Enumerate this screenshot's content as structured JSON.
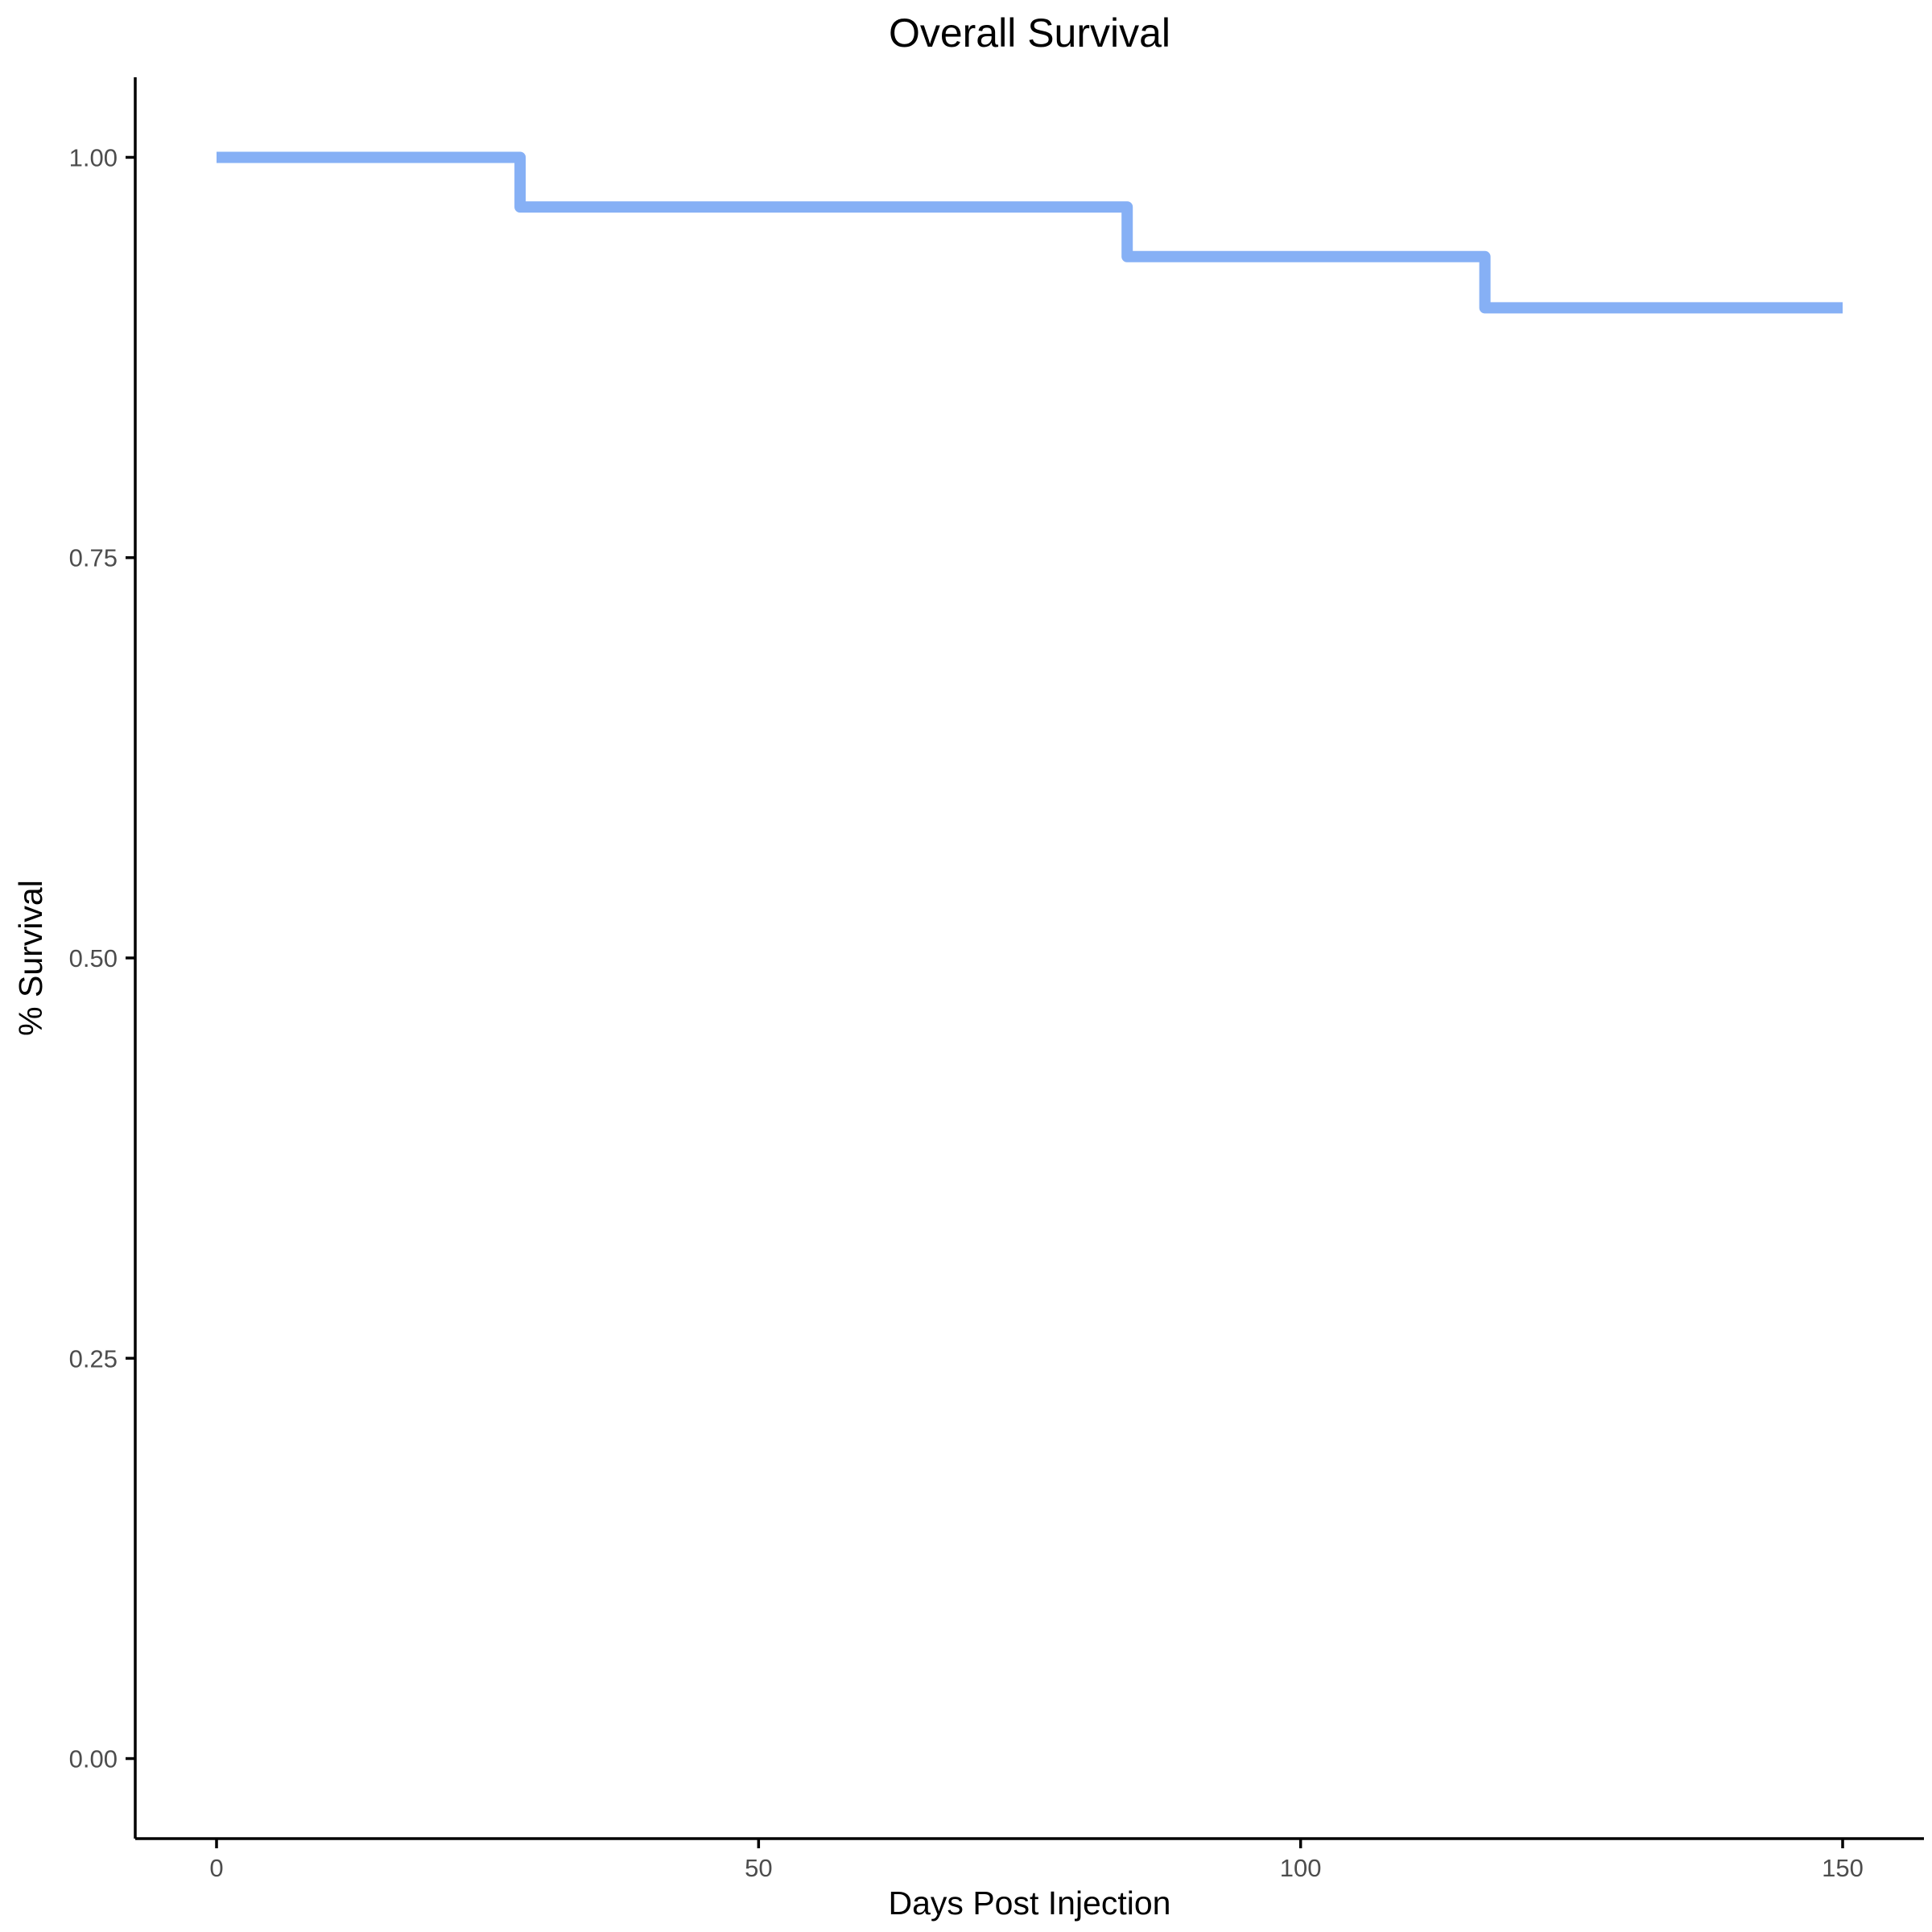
{
  "chart_data": {
    "type": "line",
    "step": true,
    "title": "Overall Survival",
    "xlabel": "Days Post Injection",
    "ylabel": "% Survival",
    "xlim": [
      -7.5,
      157.5
    ],
    "ylim": [
      -0.05,
      1.05
    ],
    "x_ticks": [
      0,
      50,
      100,
      150
    ],
    "x_tick_labels": [
      "0",
      "50",
      "100",
      "150"
    ],
    "y_ticks": [
      0,
      0.25,
      0.5,
      0.75,
      1
    ],
    "y_tick_labels": [
      "0.00",
      "0.25",
      "0.50",
      "0.75",
      "1.00"
    ],
    "grid": false,
    "legend": "none",
    "series": [
      {
        "color": "#86b0f5",
        "x": [
          0,
          28,
          84,
          117,
          150
        ],
        "y": [
          1.0,
          0.969,
          0.938,
          0.906,
          0.906
        ]
      }
    ]
  }
}
